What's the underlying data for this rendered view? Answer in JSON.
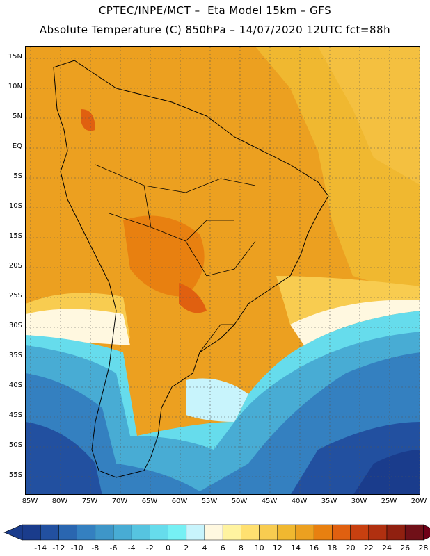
{
  "title_line1": "CPTEC/INPE/MCT –  Eta Model 15km – GFS",
  "title_line2": "Absolute Temperature (C) 850hPa – 14/07/2020 12UTC fct=88h",
  "lat_labels": [
    "15N",
    "10N",
    "5N",
    "EQ",
    "5S",
    "10S",
    "15S",
    "20S",
    "25S",
    "30S",
    "35S",
    "40S",
    "45S",
    "50S",
    "55S"
  ],
  "lon_labels": [
    "85W",
    "80W",
    "75W",
    "70W",
    "65W",
    "60W",
    "55W",
    "50W",
    "45W",
    "40W",
    "35W",
    "30W",
    "25W",
    "20W"
  ],
  "colorbar": {
    "labels": [
      "-14",
      "-12",
      "-10",
      "-8",
      "-6",
      "-4",
      "-2",
      "0",
      "2",
      "4",
      "6",
      "8",
      "10",
      "12",
      "14",
      "16",
      "18",
      "20",
      "22",
      "24",
      "26",
      "28"
    ],
    "colors": [
      "#1a3c8c",
      "#2250a0",
      "#2a66b0",
      "#3480c0",
      "#3e96c8",
      "#48acd4",
      "#56c4e0",
      "#66dcec",
      "#76f0f4",
      "#c8f4fc",
      "#fff8e0",
      "#fff3a0",
      "#ffe070",
      "#f8cc50",
      "#f0b830",
      "#eca020",
      "#e88010",
      "#e06010",
      "#c84010",
      "#b03010",
      "#902010",
      "#701018"
    ],
    "left_arrow_color": "#1a3c8c",
    "right_arrow_color": "#700018"
  }
}
